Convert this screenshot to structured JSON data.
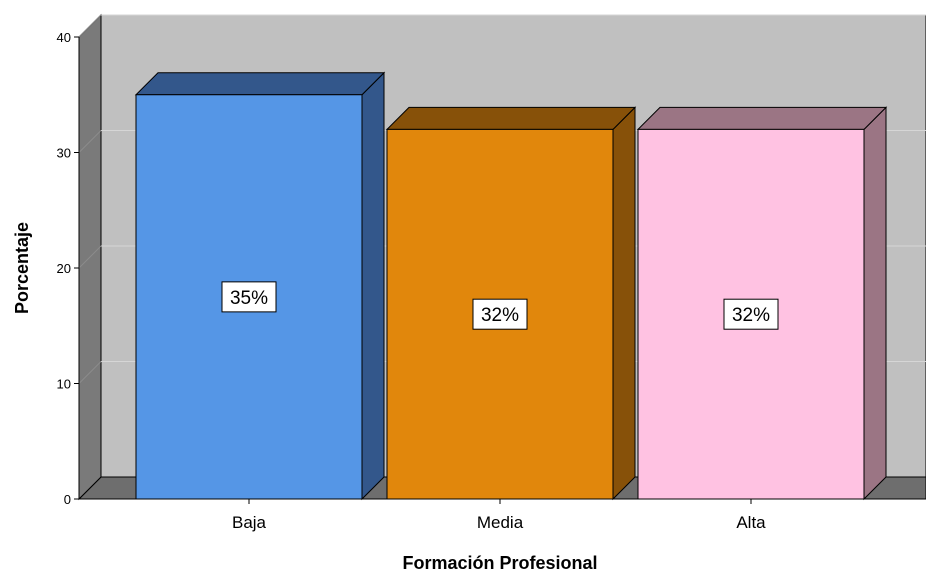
{
  "chart_data": {
    "type": "bar",
    "categories": [
      "Baja",
      "Media",
      "Alta"
    ],
    "values": [
      35,
      32,
      32
    ],
    "data_labels": [
      "35%",
      "32%",
      "32%"
    ],
    "colors": [
      "#5596e6",
      "#e1870c",
      "#ffc2e2"
    ],
    "side_colors": [
      "#33578b",
      "#875109",
      "#9b7584"
    ],
    "xlabel": "Formación Profesional",
    "ylabel": "Porcentaje",
    "ylim": [
      0,
      40
    ],
    "yticks": [
      0,
      10,
      20,
      30,
      40
    ],
    "grid": true,
    "style": "3d",
    "background": "#c0c0c0",
    "legend": "none"
  }
}
